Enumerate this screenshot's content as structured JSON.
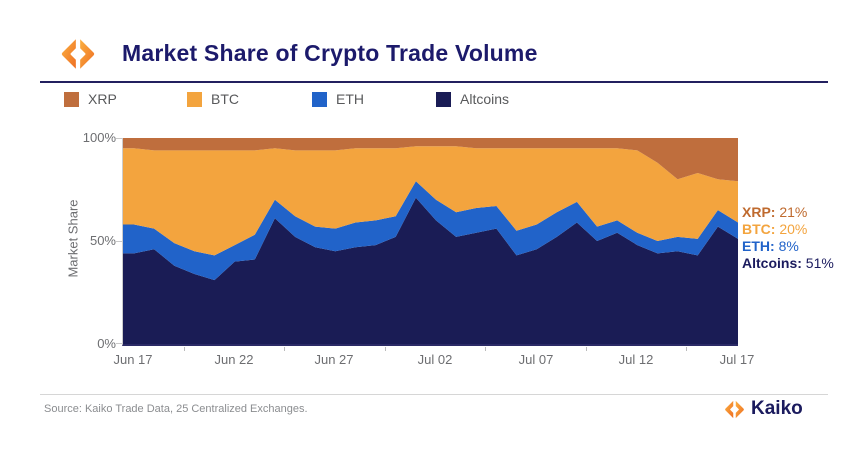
{
  "header": {
    "title": "Market Share of Crypto Trade Volume"
  },
  "legend": {
    "items": [
      {
        "label": "XRP",
        "color": "#bf6e3d"
      },
      {
        "label": "BTC",
        "color": "#f3a43e"
      },
      {
        "label": "ETH",
        "color": "#2163c9"
      },
      {
        "label": "Altcoins",
        "color": "#1a1c55"
      }
    ]
  },
  "chart_data": {
    "type": "area",
    "stacked": true,
    "title": "Market Share of Crypto Trade Volume",
    "xlabel": "",
    "ylabel": "Market Share",
    "ylim": [
      0,
      100
    ],
    "unit": "percent",
    "grid": false,
    "legend_position": "top",
    "y_tick_labels": [
      "100%",
      "50%",
      "0%"
    ],
    "x_tick_labels": [
      "Jun 17",
      "Jun 22",
      "Jun 27",
      "Jul 02",
      "Jul 07",
      "Jul 12",
      "Jul 17"
    ],
    "x": [
      "Jun 17",
      "Jun 18",
      "Jun 19",
      "Jun 20",
      "Jun 21",
      "Jun 22",
      "Jun 23",
      "Jun 24",
      "Jun 25",
      "Jun 26",
      "Jun 27",
      "Jun 28",
      "Jun 29",
      "Jun 30",
      "Jul 01",
      "Jul 02",
      "Jul 03",
      "Jul 04",
      "Jul 05",
      "Jul 06",
      "Jul 07",
      "Jul 08",
      "Jul 09",
      "Jul 10",
      "Jul 11",
      "Jul 12",
      "Jul 13",
      "Jul 14",
      "Jul 15",
      "Jul 16",
      "Jul 17"
    ],
    "series": [
      {
        "name": "Altcoins",
        "color": "#1a1c55",
        "values": [
          44,
          46,
          38,
          34,
          31,
          40,
          41,
          61,
          52,
          47,
          45,
          47,
          48,
          52,
          71,
          60,
          52,
          54,
          56,
          43,
          46,
          52,
          59,
          50,
          54,
          48,
          44,
          45,
          43,
          57,
          51
        ]
      },
      {
        "name": "ETH",
        "color": "#2163c9",
        "values": [
          14,
          10,
          11,
          11,
          12,
          8,
          12,
          9,
          10,
          10,
          11,
          12,
          12,
          10,
          8,
          10,
          12,
          12,
          11,
          12,
          12,
          12,
          10,
          7,
          6,
          6,
          6,
          7,
          8,
          8,
          8
        ]
      },
      {
        "name": "BTC",
        "color": "#f3a43e",
        "values": [
          37,
          38,
          45,
          49,
          51,
          46,
          41,
          25,
          32,
          37,
          38,
          36,
          35,
          33,
          17,
          26,
          32,
          29,
          28,
          40,
          37,
          31,
          26,
          38,
          35,
          40,
          38,
          28,
          32,
          15,
          20
        ]
      },
      {
        "name": "XRP",
        "color": "#bf6e3d",
        "values": [
          5,
          6,
          6,
          6,
          6,
          6,
          6,
          5,
          6,
          6,
          6,
          5,
          5,
          5,
          4,
          4,
          4,
          5,
          5,
          5,
          5,
          5,
          5,
          5,
          5,
          6,
          12,
          20,
          17,
          20,
          21
        ]
      }
    ]
  },
  "annotations": [
    {
      "label": "XRP:",
      "value": "21%",
      "color": "#bf6a2e"
    },
    {
      "label": "BTC:",
      "value": "20%",
      "color": "#f3a43e"
    },
    {
      "label": "ETH:",
      "value": "8%",
      "color": "#2163c9"
    },
    {
      "label": "Altcoins:",
      "value": "51%",
      "color": "#1b1b5e"
    }
  ],
  "footer": {
    "source": "Source: Kaiko Trade Data, 25 Centralized Exchanges.",
    "brand": "Kaiko"
  }
}
